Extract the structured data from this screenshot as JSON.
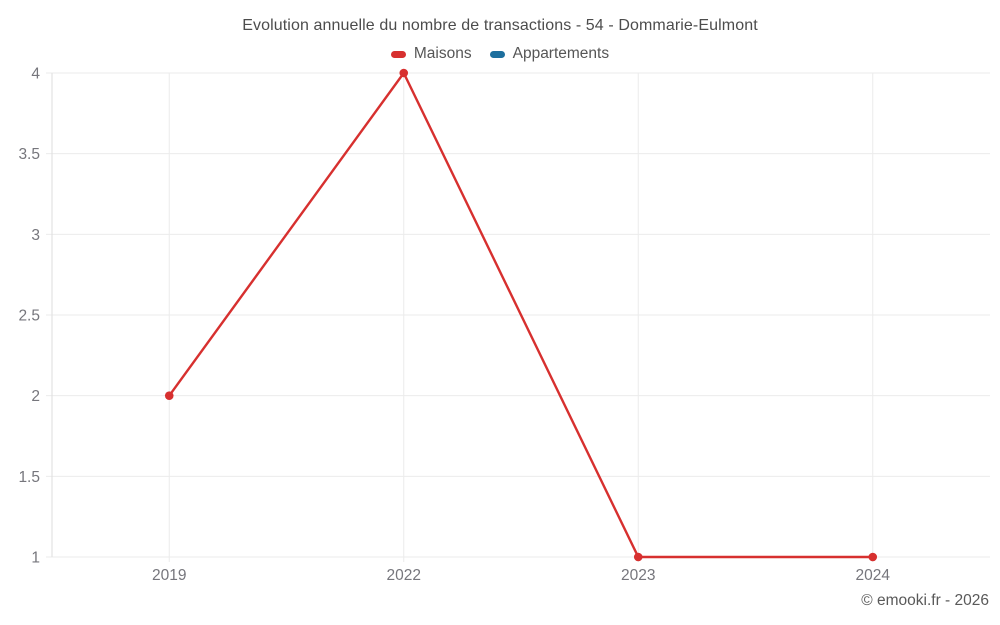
{
  "chart_data": {
    "type": "line",
    "title": "Evolution annuelle du nombre de transactions - 54 - Dommarie-Eulmont",
    "categories": [
      "2019",
      "2022",
      "2023",
      "2024"
    ],
    "series": [
      {
        "name": "Maisons",
        "color": "#d7302f",
        "values": [
          2,
          4,
          1,
          1
        ]
      },
      {
        "name": "Appartements",
        "color": "#1d6f9e",
        "values": []
      }
    ],
    "xlabel": "",
    "ylabel": "",
    "ylim": [
      1,
      4
    ],
    "ytick_step": 0.5,
    "ytick_labels": [
      "1",
      "1.5",
      "2",
      "2.5",
      "3",
      "3.5",
      "4"
    ],
    "grid": true,
    "legend_position": "top"
  },
  "footer": {
    "credit": "© emooki.fr - 2026"
  }
}
